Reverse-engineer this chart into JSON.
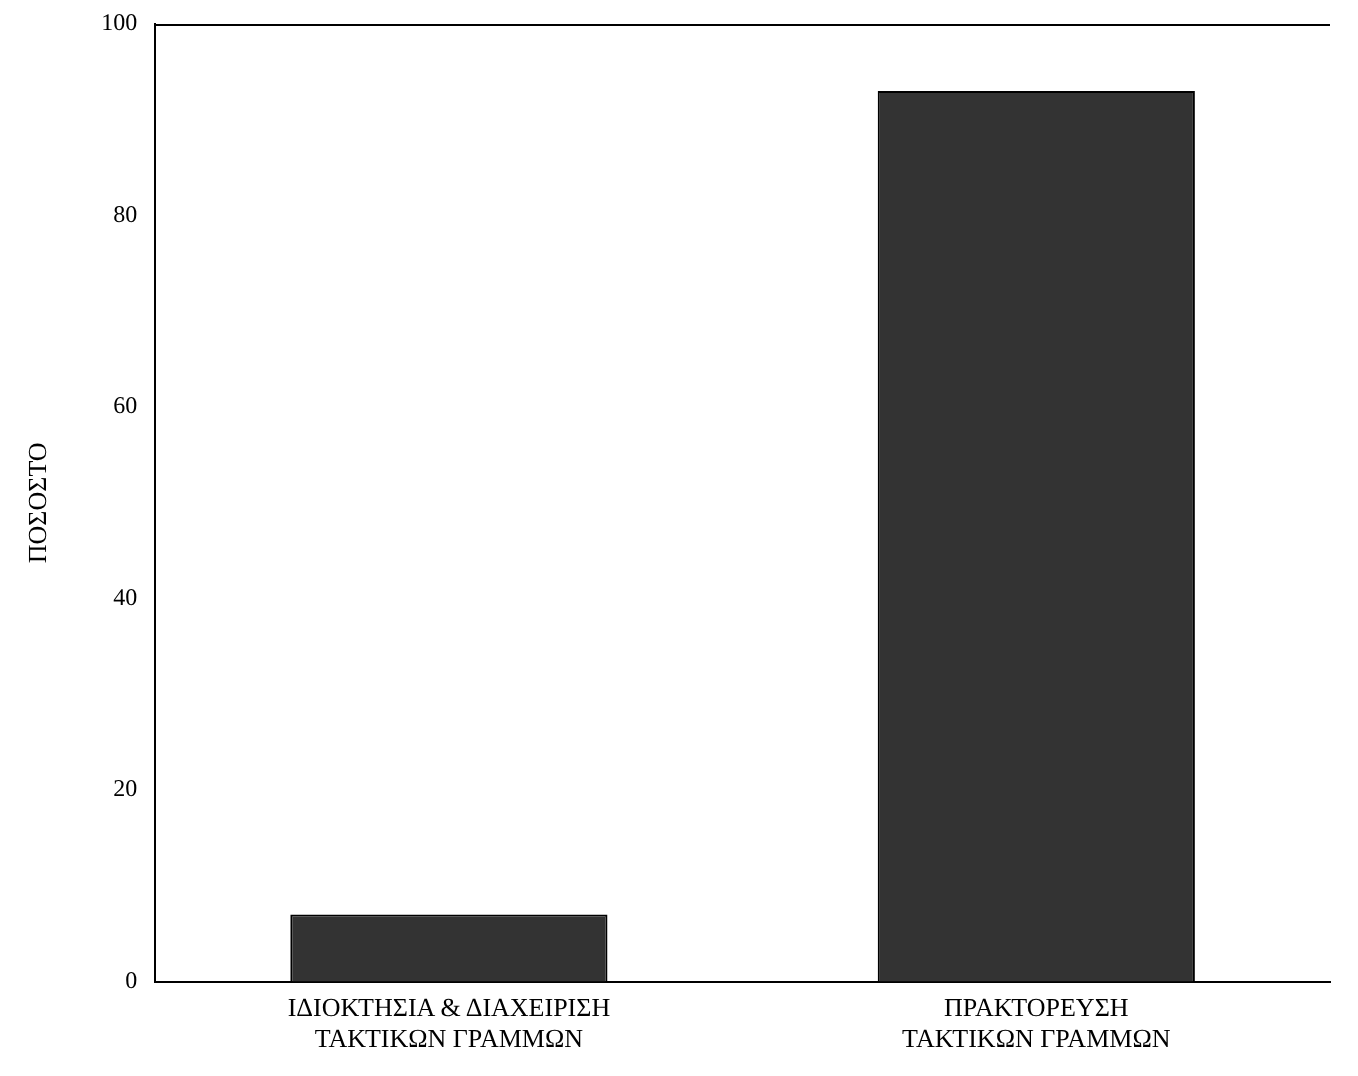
{
  "chart_data": {
    "type": "bar",
    "ylabel": "ΠΟΣΟΣΤΟ",
    "categories": [
      "ΙΔΙΟΚΤΗΣΙΑ & ΔΙΑΧΕΙΡΙΣΗ\nΤΑΚΤΙΚΩΝ ΓΡΑΜΜΩΝ",
      "ΠΡΑΚΤΟΡΕΥΣΗ\nΤΑΚΤΙΚΩΝ ΓΡΑΜΜΩΝ"
    ],
    "values": [
      7,
      93
    ],
    "color": "#333333",
    "ylim": [
      0,
      100
    ],
    "yticks": [
      0,
      20,
      40,
      60,
      80,
      100
    ],
    "grid": false,
    "legend": false
  }
}
